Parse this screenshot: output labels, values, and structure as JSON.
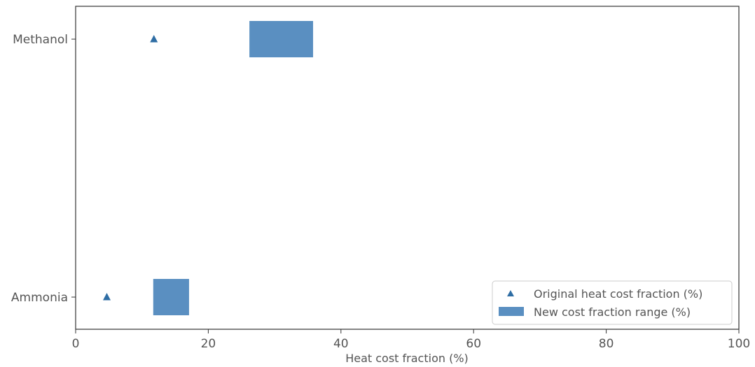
{
  "chart_data": {
    "type": "range-bar-with-markers",
    "categories": [
      "Methanol",
      "Ammonia"
    ],
    "series": [
      {
        "name": "Original heat cost fraction (%)",
        "kind": "marker",
        "marker": "triangle",
        "values": [
          11.8,
          4.7
        ]
      },
      {
        "name": "New cost fraction range (%)",
        "kind": "range",
        "ranges": [
          [
            26.2,
            35.8
          ],
          [
            11.7,
            17.1
          ]
        ]
      }
    ],
    "xlabel": "Heat cost fraction (%)",
    "ylabel": "",
    "xlim": [
      0,
      100
    ],
    "xticks": [
      0,
      20,
      40,
      60,
      80,
      100
    ],
    "legend": "lower-right",
    "grid": false,
    "colors": {
      "marker": "#2e6da4",
      "bar": "#5a8fc1",
      "axis": "#333333",
      "text": "#555555"
    }
  }
}
